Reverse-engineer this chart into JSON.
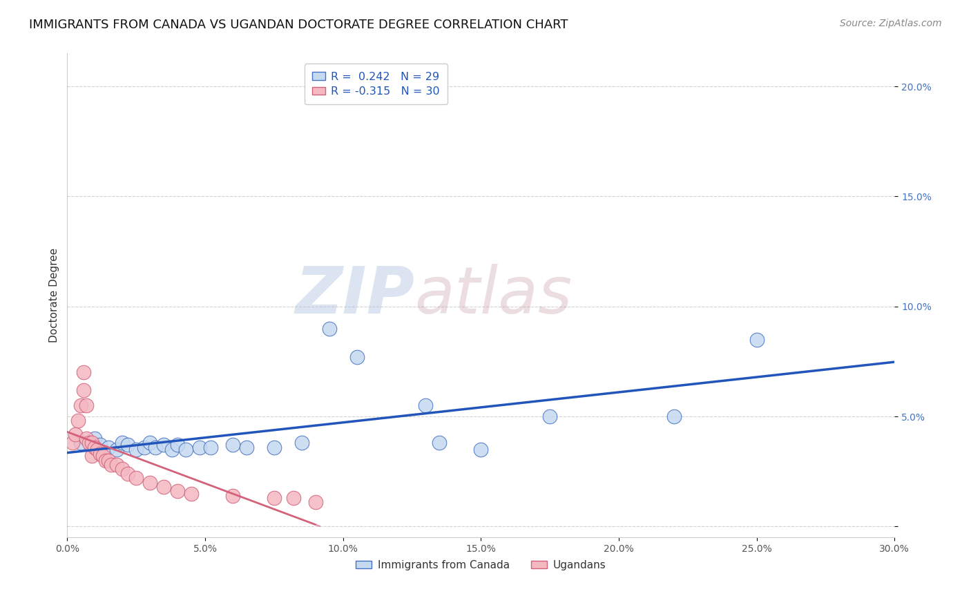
{
  "title": "IMMIGRANTS FROM CANADA VS UGANDAN DOCTORATE DEGREE CORRELATION CHART",
  "source": "Source: ZipAtlas.com",
  "ylabel": "Doctorate Degree",
  "xlim": [
    0.0,
    0.3
  ],
  "ylim": [
    -0.005,
    0.215
  ],
  "xticks": [
    0.0,
    0.05,
    0.1,
    0.15,
    0.2,
    0.25,
    0.3
  ],
  "xticklabels": [
    "0.0%",
    "5.0%",
    "10.0%",
    "15.0%",
    "20.0%",
    "25.0%",
    "30.0%"
  ],
  "yticks": [
    0.0,
    0.05,
    0.1,
    0.15,
    0.2
  ],
  "yticklabels": [
    "",
    "5.0%",
    "10.0%",
    "15.0%",
    "20.0%"
  ],
  "legend_r_entries": [
    {
      "label": "R =  0.242   N = 29",
      "facecolor": "#c5d9f0",
      "edgecolor": "#4472c4"
    },
    {
      "label": "R = -0.315   N = 30",
      "facecolor": "#f4b8c1",
      "edgecolor": "#d4607a"
    }
  ],
  "legend_bottom_labels": [
    "Immigrants from Canada",
    "Ugandans"
  ],
  "watermark_zip": "ZIP",
  "watermark_atlas": "atlas",
  "blue_color": "#c5d9f0",
  "blue_edge": "#4472c4",
  "pink_color": "#f4b8c1",
  "pink_edge": "#d4607a",
  "blue_line_color": "#2255bb",
  "pink_line_color": "#d4607a",
  "grid_color": "#cccccc",
  "background_color": "#ffffff",
  "blue_points": [
    [
      0.005,
      0.038
    ],
    [
      0.01,
      0.04
    ],
    [
      0.012,
      0.037
    ],
    [
      0.015,
      0.036
    ],
    [
      0.018,
      0.035
    ],
    [
      0.02,
      0.038
    ],
    [
      0.022,
      0.037
    ],
    [
      0.025,
      0.035
    ],
    [
      0.028,
      0.036
    ],
    [
      0.03,
      0.038
    ],
    [
      0.032,
      0.036
    ],
    [
      0.035,
      0.037
    ],
    [
      0.038,
      0.035
    ],
    [
      0.04,
      0.037
    ],
    [
      0.043,
      0.035
    ],
    [
      0.048,
      0.036
    ],
    [
      0.052,
      0.036
    ],
    [
      0.06,
      0.037
    ],
    [
      0.065,
      0.036
    ],
    [
      0.075,
      0.036
    ],
    [
      0.085,
      0.038
    ],
    [
      0.095,
      0.09
    ],
    [
      0.105,
      0.077
    ],
    [
      0.13,
      0.055
    ],
    [
      0.135,
      0.038
    ],
    [
      0.15,
      0.035
    ],
    [
      0.175,
      0.05
    ],
    [
      0.22,
      0.05
    ],
    [
      0.25,
      0.085
    ]
  ],
  "pink_points": [
    [
      0.002,
      0.038
    ],
    [
      0.003,
      0.042
    ],
    [
      0.004,
      0.048
    ],
    [
      0.005,
      0.055
    ],
    [
      0.006,
      0.062
    ],
    [
      0.006,
      0.07
    ],
    [
      0.007,
      0.055
    ],
    [
      0.007,
      0.04
    ],
    [
      0.008,
      0.038
    ],
    [
      0.009,
      0.038
    ],
    [
      0.009,
      0.032
    ],
    [
      0.01,
      0.036
    ],
    [
      0.011,
      0.035
    ],
    [
      0.012,
      0.033
    ],
    [
      0.013,
      0.032
    ],
    [
      0.014,
      0.03
    ],
    [
      0.015,
      0.03
    ],
    [
      0.016,
      0.028
    ],
    [
      0.018,
      0.028
    ],
    [
      0.02,
      0.026
    ],
    [
      0.022,
      0.024
    ],
    [
      0.025,
      0.022
    ],
    [
      0.03,
      0.02
    ],
    [
      0.035,
      0.018
    ],
    [
      0.04,
      0.016
    ],
    [
      0.045,
      0.015
    ],
    [
      0.06,
      0.014
    ],
    [
      0.075,
      0.013
    ],
    [
      0.082,
      0.013
    ],
    [
      0.09,
      0.011
    ]
  ],
  "dot_size": 220,
  "title_fontsize": 13,
  "tick_fontsize": 10,
  "source_fontsize": 10,
  "ylabel_fontsize": 11
}
